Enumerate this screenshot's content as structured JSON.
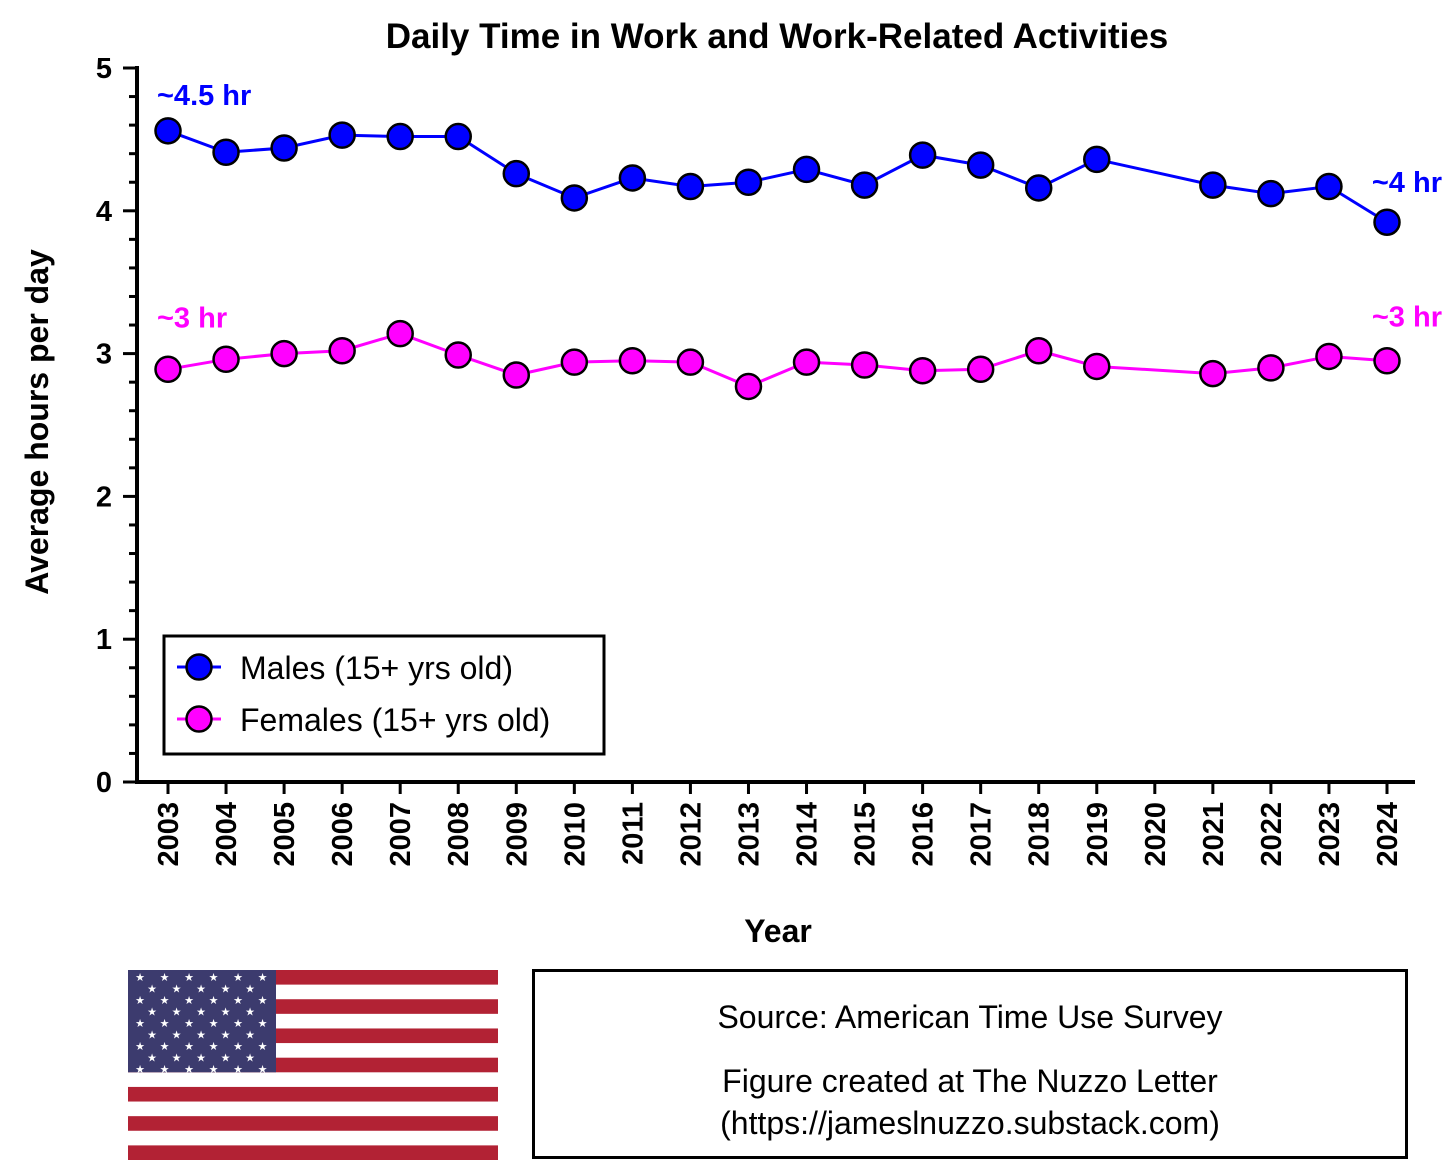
{
  "chart_data": {
    "type": "line",
    "title": "Daily Time in Work and Work-Related Activities",
    "xlabel": "Year",
    "ylabel": "Average hours per day",
    "ylim": [
      0,
      5
    ],
    "yticks": [
      "0",
      "1",
      "2",
      "3",
      "4",
      "5"
    ],
    "categories": [
      "2003",
      "2004",
      "2005",
      "2006",
      "2007",
      "2008",
      "2009",
      "2010",
      "2011",
      "2012",
      "2013",
      "2014",
      "2015",
      "2016",
      "2017",
      "2018",
      "2019",
      "2020",
      "2021",
      "2022",
      "2023",
      "2024"
    ],
    "series": [
      {
        "name": "Males (15+ yrs old)",
        "color": "#0000ff",
        "values": [
          4.56,
          4.41,
          4.44,
          4.53,
          4.52,
          4.52,
          4.26,
          4.09,
          4.23,
          4.17,
          4.2,
          4.29,
          4.18,
          4.39,
          4.32,
          4.16,
          4.36,
          null,
          4.18,
          4.12,
          4.17,
          3.92
        ]
      },
      {
        "name": "Females (15+ yrs old)",
        "color": "#ff00ff",
        "values": [
          2.89,
          2.96,
          3.0,
          3.02,
          3.14,
          2.99,
          2.85,
          2.94,
          2.95,
          2.94,
          2.77,
          2.94,
          2.92,
          2.88,
          2.89,
          3.02,
          2.91,
          null,
          2.86,
          2.9,
          2.98,
          2.95
        ]
      }
    ],
    "annotations": [
      {
        "text": "~4.5 hr",
        "series": "Males (15+ yrs old)",
        "category": "2003"
      },
      {
        "text": "~4 hr",
        "series": "Males (15+ yrs old)",
        "category": "2024"
      },
      {
        "text": "~3 hr",
        "series": "Females (15+ yrs old)",
        "category": "2003"
      },
      {
        "text": "~3 hr",
        "series": "Females (15+ yrs old)",
        "category": "2024"
      }
    ],
    "legend": "bottom-left"
  },
  "footer": {
    "source": "Source: American Time Use Survey",
    "credit": "Figure created at The Nuzzo Letter",
    "url": "(https://jameslnuzzo.substack.com)"
  },
  "flag": {
    "name": "us-flag-icon",
    "red": "#b22234",
    "white": "#ffffff",
    "blue": "#3c3b6e"
  }
}
